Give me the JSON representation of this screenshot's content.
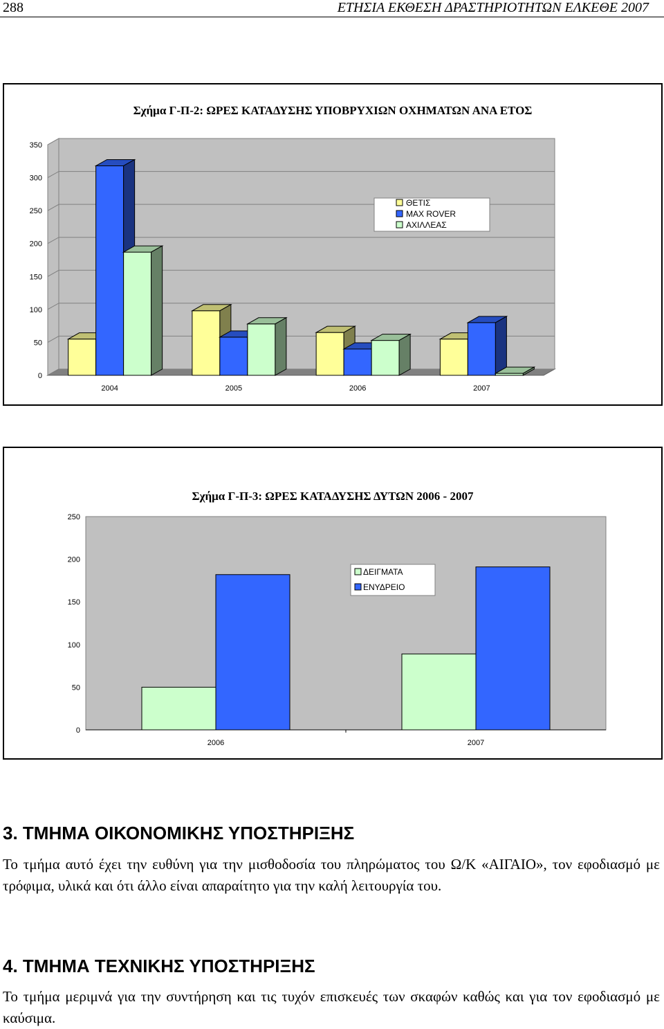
{
  "page": {
    "number": "288",
    "running_title": "ΕΤΗΣΙΑ ΕΚΘΕΣΗ ΔΡΑΣΤΗΡΙΟΤΗΤΩΝ ΕΛΚΕΘΕ 2007"
  },
  "chart_data": [
    {
      "type": "bar",
      "title": "Σχήμα Γ-Π-2: ΩΡΕΣ ΚΑΤΑΔΥΣΗΣ ΥΠΟΒΡΥΧΙΩΝ ΟΧΗΜΑΤΩΝ ΑΝΑ ΕΤΟΣ",
      "categories": [
        "2004",
        "2005",
        "2006",
        "2007"
      ],
      "ylim": [
        0,
        350
      ],
      "yticks": [
        0,
        50,
        100,
        150,
        200,
        250,
        300,
        350
      ],
      "style": "3d",
      "grid": true,
      "legend": "top-right",
      "series": [
        {
          "name": "ΘΕΤΙΣ",
          "color": "#ffff99",
          "values": [
            55,
            98,
            65,
            55
          ]
        },
        {
          "name": "MAX ROVER",
          "color": "#3366ff",
          "values": [
            318,
            58,
            40,
            80
          ]
        },
        {
          "name": "ΑΧΙΛΛΕΑΣ",
          "color": "#ccffcc",
          "values": [
            187,
            78,
            53,
            3
          ]
        }
      ]
    },
    {
      "type": "bar",
      "title": "Σχήμα Γ-Π-3: ΩΡΕΣ ΚΑΤΑΔΥΣΗΣ ΔΥΤΩΝ 2006 - 2007",
      "categories": [
        "2006",
        "2007"
      ],
      "ylim": [
        0,
        250
      ],
      "yticks": [
        0,
        50,
        100,
        150,
        200,
        250
      ],
      "grid": false,
      "legend": "top-center",
      "series": [
        {
          "name": "ΔΕΙΓΜΑΤΑ",
          "color": "#ccffcc",
          "values": [
            50,
            89
          ]
        },
        {
          "name": "ΕΝΥΔΡΕΙΟ",
          "color": "#3366ff",
          "values": [
            182,
            191
          ]
        }
      ]
    }
  ],
  "sections": [
    {
      "heading": "3. ΤΜΗΜΑ ΟΙΚΟΝΟΜΙΚΗΣ ΥΠΟΣΤΗΡΙΞΗΣ",
      "text": "Το τμήμα αυτό έχει την ευθύνη για την μισθοδοσία του πληρώματος του Ω/Κ «ΑΙΓΑΙΟ», τον εφοδιασμό με τρόφιμα, υλικά και ότι άλλο είναι απαραίτητο για την καλή λειτουργία του."
    },
    {
      "heading": "4. ΤΜΗΜΑ ΤΕΧΝΙΚΗΣ ΥΠΟΣΤΗΡΙΞΗΣ",
      "text": "Το τμήμα μεριμνά για την συντήρηση και τις τυχόν επισκευές των σκαφών καθώς και για τον εφοδιασμό με καύσιμα."
    }
  ]
}
